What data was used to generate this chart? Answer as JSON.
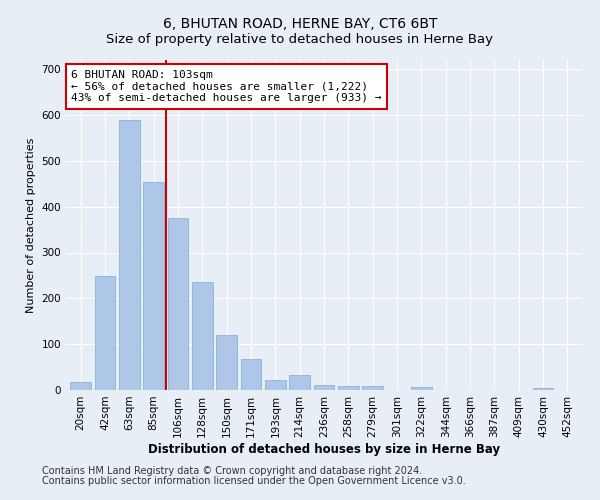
{
  "title": "6, BHUTAN ROAD, HERNE BAY, CT6 6BT",
  "subtitle": "Size of property relative to detached houses in Herne Bay",
  "xlabel": "Distribution of detached houses by size in Herne Bay",
  "ylabel": "Number of detached properties",
  "categories": [
    "20sqm",
    "42sqm",
    "63sqm",
    "85sqm",
    "106sqm",
    "128sqm",
    "150sqm",
    "171sqm",
    "193sqm",
    "214sqm",
    "236sqm",
    "258sqm",
    "279sqm",
    "301sqm",
    "322sqm",
    "344sqm",
    "366sqm",
    "387sqm",
    "409sqm",
    "430sqm",
    "452sqm"
  ],
  "values": [
    17,
    248,
    590,
    453,
    375,
    235,
    120,
    68,
    22,
    32,
    11,
    8,
    8,
    0,
    7,
    0,
    0,
    0,
    0,
    4,
    0
  ],
  "bar_color": "#aec6e8",
  "bar_edge_color": "#7aafd4",
  "vline_x": 3.5,
  "vline_color": "#cc0000",
  "annotation_text": "6 BHUTAN ROAD: 103sqm\n← 56% of detached houses are smaller (1,222)\n43% of semi-detached houses are larger (933) →",
  "annotation_box_color": "#ffffff",
  "annotation_box_edge": "#cc0000",
  "ylim": [
    0,
    720
  ],
  "yticks": [
    0,
    100,
    200,
    300,
    400,
    500,
    600,
    700
  ],
  "bg_color": "#e8eef5",
  "plot_bg_color": "#e8eef5",
  "footer1": "Contains HM Land Registry data © Crown copyright and database right 2024.",
  "footer2": "Contains public sector information licensed under the Open Government Licence v3.0.",
  "title_fontsize": 10,
  "subtitle_fontsize": 9.5,
  "xlabel_fontsize": 8.5,
  "ylabel_fontsize": 8,
  "tick_fontsize": 7.5,
  "annotation_fontsize": 8,
  "footer_fontsize": 7
}
